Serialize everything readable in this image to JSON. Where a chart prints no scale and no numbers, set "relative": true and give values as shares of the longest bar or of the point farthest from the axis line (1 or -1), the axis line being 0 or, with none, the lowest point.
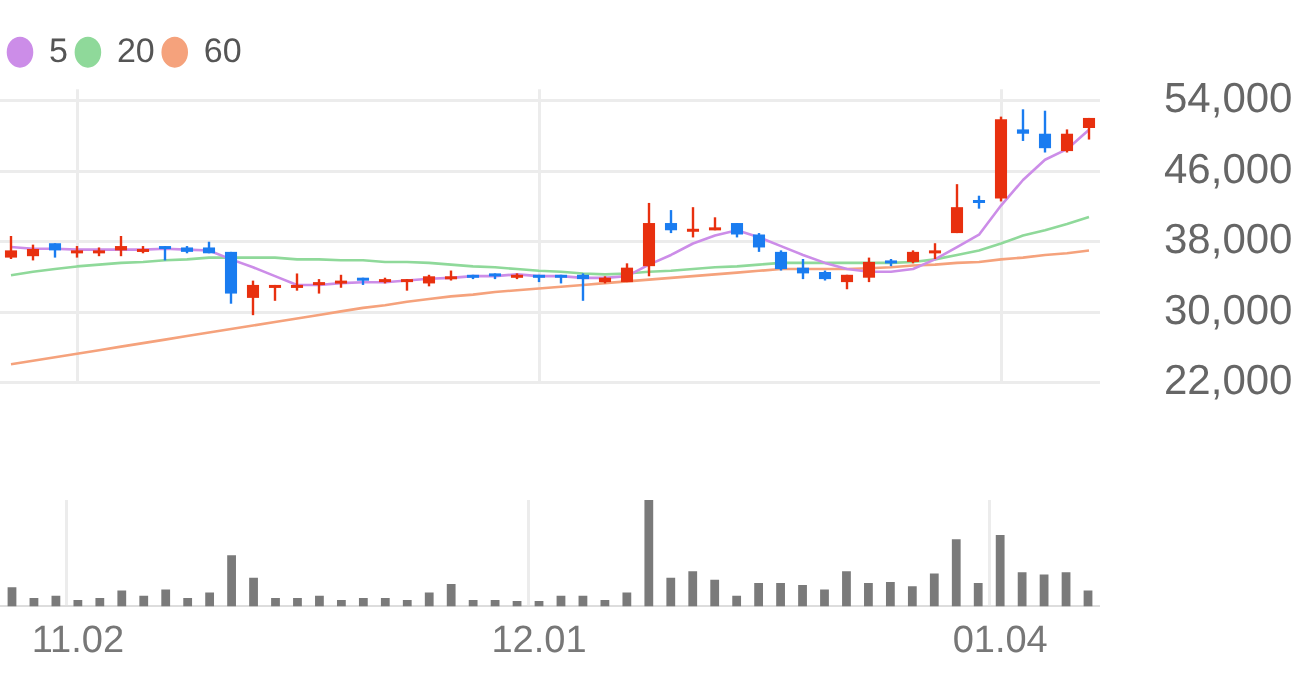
{
  "chart_data": [
    {
      "type": "candlestick",
      "legend": "top left",
      "grid": true,
      "tick_labels": "y",
      "marker": "none",
      "categories": [
        null,
        null,
        null,
        "11.02",
        null,
        null,
        null,
        null,
        null,
        null,
        null,
        null,
        null,
        null,
        null,
        null,
        null,
        null,
        null,
        null,
        null,
        null,
        null,
        null,
        "12.01",
        null,
        null,
        null,
        null,
        null,
        null,
        null,
        null,
        null,
        null,
        null,
        null,
        null,
        null,
        null,
        null,
        null,
        null,
        null,
        null,
        "01.04",
        null,
        null,
        null,
        null
      ],
      "ylim": [
        22000,
        55300
      ],
      "yticks": [
        {
          "value": 22000,
          "label": "22,000"
        },
        {
          "value": 30000,
          "label": "30,000"
        },
        {
          "value": 38000,
          "label": "38,000"
        },
        {
          "value": 46000,
          "label": "46,000"
        },
        {
          "value": 54000,
          "label": "54,000"
        }
      ],
      "ohlc": [
        [
          36200,
          38650,
          36040,
          37020
        ],
        [
          36360,
          37670,
          35880,
          37180
        ],
        [
          37830,
          37830,
          36200,
          37020
        ],
        [
          36850,
          37510,
          36200,
          37020
        ],
        [
          36850,
          37350,
          36360,
          37020
        ],
        [
          37020,
          38650,
          36360,
          37510
        ],
        [
          37020,
          37510,
          36690,
          37180
        ],
        [
          37510,
          37510,
          35880,
          37350
        ],
        [
          37350,
          37510,
          36690,
          36850
        ],
        [
          37350,
          38000,
          36690,
          36690
        ],
        [
          36850,
          36850,
          30970,
          32120
        ],
        [
          31630,
          33590,
          29670,
          33100
        ],
        [
          32940,
          33100,
          31300,
          33100
        ],
        [
          32940,
          34400,
          32450,
          33100
        ],
        [
          33100,
          33760,
          32120,
          33420
        ],
        [
          33270,
          34250,
          32780,
          33590
        ],
        [
          33920,
          33920,
          33100,
          33590
        ],
        [
          33420,
          33920,
          33270,
          33760
        ],
        [
          33600,
          33760,
          32450,
          33760
        ],
        [
          33270,
          34250,
          32940,
          34080
        ],
        [
          33920,
          34730,
          33600,
          34080
        ],
        [
          34250,
          34250,
          33760,
          34080
        ],
        [
          34410,
          34410,
          33760,
          34250
        ],
        [
          33920,
          34410,
          33760,
          34250
        ],
        [
          34250,
          34250,
          33420,
          34080
        ],
        [
          34250,
          34250,
          33270,
          34080
        ],
        [
          34250,
          34410,
          31300,
          33760
        ],
        [
          33420,
          34080,
          33270,
          33920
        ],
        [
          33420,
          35550,
          33420,
          35060
        ],
        [
          35230,
          42400,
          34080,
          40120
        ],
        [
          40120,
          41590,
          38980,
          39300
        ],
        [
          39300,
          41920,
          38490,
          39470
        ],
        [
          39300,
          40770,
          39300,
          39630
        ],
        [
          40120,
          40120,
          38490,
          38820
        ],
        [
          38820,
          38980,
          36850,
          37350
        ],
        [
          36850,
          37020,
          34730,
          34900
        ],
        [
          35060,
          36040,
          33760,
          34410
        ],
        [
          34570,
          34730,
          33600,
          33760
        ],
        [
          33420,
          34250,
          32610,
          34250
        ],
        [
          33920,
          36200,
          33420,
          35710
        ],
        [
          35880,
          36040,
          35230,
          35550
        ],
        [
          35710,
          37020,
          35550,
          36850
        ],
        [
          36850,
          37830,
          36040,
          37020
        ],
        [
          38980,
          44530,
          38980,
          41920
        ],
        [
          42730,
          43220,
          41750,
          42570
        ],
        [
          42900,
          52190,
          42570,
          51880
        ],
        [
          50740,
          53020,
          49430,
          50250
        ],
        [
          50250,
          52860,
          48120,
          48610
        ],
        [
          48280,
          50740,
          48120,
          50250
        ],
        [
          50900,
          52040,
          49590,
          52040
        ]
      ],
      "colors": [
        "#e8300f",
        "#e8300f",
        "#1a7cf0",
        "#e8300f",
        "#e8300f",
        "#e8300f",
        "#e8300f",
        "#1a7cf0",
        "#1a7cf0",
        "#1a7cf0",
        "#1a7cf0",
        "#e8300f",
        "#e8300f",
        "#e8300f",
        "#e8300f",
        "#e8300f",
        "#1a7cf0",
        "#e8300f",
        "#e8300f",
        "#e8300f",
        "#e8300f",
        "#1a7cf0",
        "#1a7cf0",
        "#e8300f",
        "#1a7cf0",
        "#1a7cf0",
        "#1a7cf0",
        "#e8300f",
        "#e8300f",
        "#e8300f",
        "#1a7cf0",
        "#e8300f",
        "#e8300f",
        "#1a7cf0",
        "#1a7cf0",
        "#1a7cf0",
        "#1a7cf0",
        "#1a7cf0",
        "#e8300f",
        "#e8300f",
        "#1a7cf0",
        "#e8300f",
        "#e8300f",
        "#e8300f",
        "#1a7cf0",
        "#e8300f",
        "#1a7cf0",
        "#1a7cf0",
        "#e8300f",
        "#e8300f"
      ],
      "series": [
        {
          "type": "line",
          "name": "5",
          "color": "#cc8de8",
          "values": [
            37400,
            37200,
            37200,
            37100,
            37100,
            37100,
            37100,
            37200,
            37100,
            37000,
            36000,
            35100,
            34100,
            33100,
            33100,
            33300,
            33400,
            33400,
            33600,
            33800,
            33900,
            34100,
            34100,
            34300,
            34100,
            34100,
            33900,
            33900,
            34100,
            35400,
            36500,
            37800,
            38700,
            39300,
            38500,
            37500,
            36500,
            35600,
            34900,
            34600,
            34600,
            34900,
            36000,
            37400,
            38800,
            42100,
            45000,
            47300,
            48500,
            50700
          ]
        },
        {
          "type": "line",
          "name": "20",
          "color": "#8fd99a",
          "values": [
            34200,
            34600,
            34900,
            35200,
            35400,
            35600,
            35700,
            35900,
            36000,
            36200,
            36200,
            36200,
            36200,
            36000,
            36000,
            35900,
            35900,
            35700,
            35700,
            35600,
            35400,
            35200,
            35100,
            34900,
            34700,
            34600,
            34400,
            34300,
            34400,
            34600,
            34700,
            34900,
            35100,
            35200,
            35400,
            35600,
            35600,
            35600,
            35600,
            35600,
            35600,
            35700,
            36000,
            36500,
            37000,
            37800,
            38700,
            39300,
            40000,
            40800
          ]
        },
        {
          "type": "line",
          "name": "60",
          "color": "#f5a27c",
          "values": [
            24100,
            24500,
            24900,
            25300,
            25700,
            26100,
            26500,
            26900,
            27300,
            27700,
            28100,
            28500,
            28900,
            29300,
            29700,
            30100,
            30500,
            30800,
            31200,
            31500,
            31800,
            32000,
            32300,
            32500,
            32700,
            32900,
            33100,
            33300,
            33500,
            33700,
            33900,
            34100,
            34300,
            34500,
            34700,
            34900,
            34900,
            34900,
            34900,
            35000,
            35100,
            35300,
            35400,
            35600,
            35700,
            36000,
            36200,
            36500,
            36700,
            37000
          ]
        }
      ]
    },
    {
      "type": "bar",
      "relative": true,
      "grid": "x",
      "tick_labels": "x",
      "color": "#7a7a7a",
      "categories": [
        null,
        null,
        null,
        "11.02",
        null,
        null,
        null,
        null,
        null,
        null,
        null,
        null,
        null,
        null,
        null,
        null,
        null,
        null,
        null,
        null,
        null,
        null,
        null,
        null,
        "12.01",
        null,
        null,
        null,
        null,
        null,
        null,
        null,
        null,
        null,
        null,
        null,
        null,
        null,
        null,
        null,
        null,
        null,
        null,
        null,
        null,
        "01.04",
        null,
        null,
        null,
        null
      ],
      "values": [
        0.18,
        0.08,
        0.1,
        0.06,
        0.08,
        0.15,
        0.1,
        0.16,
        0.08,
        0.13,
        0.48,
        0.27,
        0.08,
        0.08,
        0.1,
        0.06,
        0.08,
        0.08,
        0.06,
        0.13,
        0.21,
        0.06,
        0.06,
        0.05,
        0.05,
        0.1,
        0.1,
        0.06,
        0.13,
        1,
        0.27,
        0.33,
        0.25,
        0.1,
        0.22,
        0.22,
        0.2,
        0.16,
        0.33,
        0.22,
        0.23,
        0.19,
        0.31,
        0.63,
        0.22,
        0.67,
        0.32,
        0.3,
        0.32,
        0.15
      ]
    }
  ]
}
